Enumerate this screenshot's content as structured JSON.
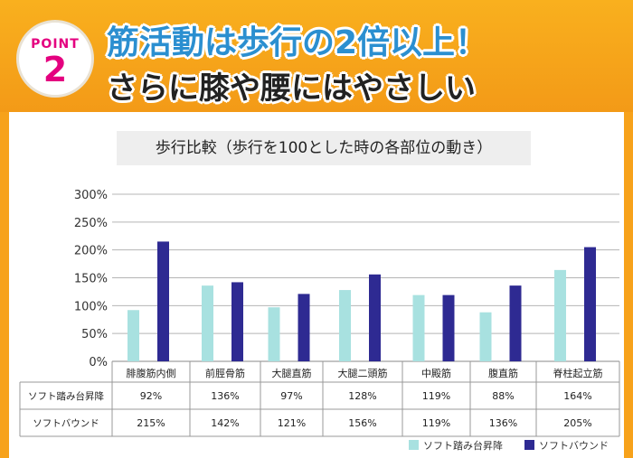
{
  "header": {
    "badge_word": "POINT",
    "badge_number": "2",
    "headline_line1": "筋活動は歩行の2倍以上！",
    "headline_line2": "さらに膝や腰にはやさしい"
  },
  "colors": {
    "accent_orange": "#f7a21b",
    "badge_pink": "#e4007f",
    "headline_blue": "#2b8fd0",
    "series_light": "#a8e1e0",
    "series_dark": "#2e2a92"
  },
  "chart_data": {
    "type": "bar",
    "title": "歩行比較（歩行を100とした時の各部位の動き）",
    "categories": [
      "腓腹筋内側",
      "前脛骨筋",
      "大腿直筋",
      "大腿二頭筋",
      "中殿筋",
      "腹直筋",
      "脊柱起立筋"
    ],
    "series": [
      {
        "name": "ソフト踏み台昇降",
        "values": [
          92,
          136,
          97,
          128,
          119,
          88,
          164
        ],
        "labels": [
          "92%",
          "136%",
          "97%",
          "128%",
          "119%",
          "88%",
          "164%"
        ]
      },
      {
        "name": "ソフトバウンド",
        "values": [
          215,
          142,
          121,
          156,
          119,
          136,
          205
        ],
        "labels": [
          "215%",
          "142%",
          "121%",
          "156%",
          "119%",
          "136%",
          "205%"
        ]
      }
    ],
    "y_ticks": [
      "0%",
      "50%",
      "100%",
      "150%",
      "200%",
      "250%",
      "300%"
    ],
    "ylim": [
      0,
      300
    ],
    "grid": true,
    "legend_position": "bottom-right"
  }
}
